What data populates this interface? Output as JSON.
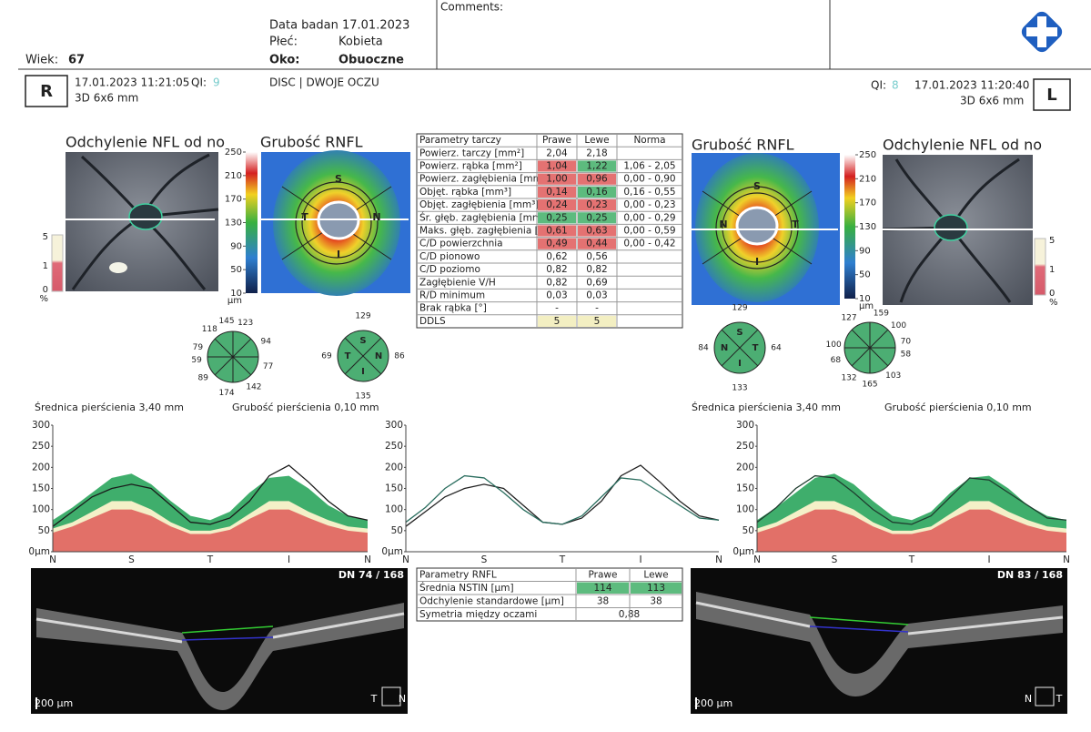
{
  "header": {
    "age_label": "Wiek:",
    "age": 67,
    "exam_date": "Data badan 17.01.2023",
    "sex_label": "Płeć:",
    "sex": "Kobieta",
    "eye_label": "Oko:",
    "eye": "Obuoczne",
    "comments": "Comments:"
  },
  "scan": {
    "mode": "DISC | DWOJE OCZU"
  },
  "right": {
    "badge": "R",
    "datetime": "17.01.2023 11:21:05",
    "qi_label": "QI:",
    "qi": 9,
    "protocol": "3D 6x6 mm",
    "deviation_title": "Odchylenie NFL od no",
    "thickness_title": "Grubość RNFL",
    "clock": [
      145,
      123,
      94,
      77,
      142,
      174,
      89,
      59,
      79,
      118
    ],
    "quadrants": {
      "labels": [
        "S",
        "N",
        "I",
        "T"
      ],
      "values": [
        129,
        86,
        135,
        69
      ]
    },
    "bscan_label": "DN 74 / 168",
    "scale_bar": "200 µm",
    "direction": [
      "T",
      "N"
    ]
  },
  "left": {
    "badge": "L",
    "datetime": "17.01.2023 11:20:40",
    "qi_label": "QI:",
    "qi": 8,
    "protocol": "3D 6x6 mm",
    "deviation_title": "Odchylenie NFL od no",
    "thickness_title": "Grubość RNFL",
    "clock": [
      159,
      100,
      70,
      58,
      103,
      165,
      132,
      68,
      100,
      127
    ],
    "quadrants": {
      "labels": [
        "S",
        "T",
        "I",
        "N"
      ],
      "values": [
        129,
        64,
        133,
        84
      ]
    },
    "bscan_label": "DN 83 / 168",
    "scale_bar": "200 µm",
    "direction": [
      "N",
      "T"
    ]
  },
  "thickness_scale": {
    "ticks": [
      250,
      210,
      170,
      130,
      90,
      50,
      10
    ],
    "unit": "µm"
  },
  "deviation_scale": {
    "ticks": [
      5,
      1,
      0
    ],
    "unit": "%"
  },
  "disc_table": {
    "header": [
      "Parametry tarczy",
      "Prawe",
      "Lewe",
      "Norma"
    ],
    "rows": [
      {
        "label": "Powierz. tarczy [mm²]",
        "prawe": "2,04",
        "lewe": "2,18"
      },
      {
        "label": "Powierz. rąbka [mm²]",
        "prawe": "1,04",
        "lewe": "1,22",
        "norma": "1,06 - 2,05",
        "colors": [
          "#e47272",
          "#5dbb7e"
        ]
      },
      {
        "label": "Powierz. zagłębienia [mm",
        "prawe": "1,00",
        "lewe": "0,96",
        "norma": "0,00 - 0,90",
        "colors": [
          "#e47272",
          "#e47272"
        ]
      },
      {
        "label": "Objęt. rąbka [mm³]",
        "prawe": "0,14",
        "lewe": "0,16",
        "norma": "0,16 - 0,55",
        "colors": [
          "#e47272",
          "#5dbb7e"
        ]
      },
      {
        "label": "Objęt. zagłębienia [mm³]",
        "prawe": "0,24",
        "lewe": "0,23",
        "norma": "0,00 - 0,23",
        "colors": [
          "#e47272",
          "#e47272"
        ]
      },
      {
        "label": "Śr. głęb. zagłębienia [mm",
        "prawe": "0,25",
        "lewe": "0,25",
        "norma": "0,00 - 0,29",
        "colors": [
          "#5dbb7e",
          "#5dbb7e"
        ]
      },
      {
        "label": "Maks. głęb. zagłębienia [r",
        "prawe": "0,61",
        "lewe": "0,63",
        "norma": "0,00 - 0,59",
        "colors": [
          "#e47272",
          "#e47272"
        ]
      },
      {
        "label": "C/D powierzchnia",
        "prawe": "0,49",
        "lewe": "0,44",
        "norma": "0,00 - 0,42",
        "colors": [
          "#e47272",
          "#e47272"
        ]
      },
      {
        "label": "C/D pionowo",
        "prawe": "0,62",
        "lewe": "0,56"
      },
      {
        "label": "C/D poziomo",
        "prawe": "0,82",
        "lewe": "0,82"
      },
      {
        "label": "Zagłębienie V/H",
        "prawe": "0,82",
        "lewe": "0,69"
      },
      {
        "label": "R/D minimum",
        "prawe": "0,03",
        "lewe": "0,03"
      },
      {
        "label": "Brak rąbka [°]",
        "prawe": "-",
        "lewe": "-"
      },
      {
        "label": "DDLS",
        "prawe": "5",
        "lewe": "5",
        "colors": [
          "#f3efc2",
          "#f3efc2"
        ]
      }
    ]
  },
  "rnfl_table": {
    "header": [
      "Parametry RNFL",
      "Prawe",
      "Lewe"
    ],
    "rows": [
      {
        "label": "Średnia NSTIN [µm]",
        "prawe": 114,
        "lewe": 113,
        "colors": [
          "#5dbb7e",
          "#5dbb7e"
        ]
      },
      {
        "label": "Odchylenie standardowe [µm]",
        "prawe": 38,
        "lewe": 38
      },
      {
        "label": "Symetria między oczami",
        "value": "0,88"
      }
    ]
  },
  "chart_data": [
    {
      "type": "line",
      "annotations": [
        "Średnica pierścienia 3,40 mm",
        "Grubość pierścienia 0,10 mm"
      ],
      "categories": [
        "N",
        null,
        null,
        null,
        "S",
        null,
        null,
        null,
        "T",
        null,
        null,
        null,
        "I",
        null,
        null,
        null,
        "N"
      ],
      "ylim": [
        0,
        300
      ],
      "yticks": [
        {
          "value": 0,
          "label": "0µm"
        },
        50,
        100,
        150,
        200,
        250,
        300
      ],
      "bands": [
        {
          "color": "#3fae6c",
          "values": [
            75,
            105,
            140,
            175,
            185,
            160,
            120,
            85,
            75,
            95,
            140,
            175,
            180,
            150,
            110,
            85,
            75
          ]
        },
        {
          "color": "#f4f0c8",
          "values": [
            55,
            70,
            95,
            120,
            120,
            100,
            70,
            50,
            50,
            60,
            90,
            120,
            120,
            95,
            75,
            60,
            55
          ]
        },
        {
          "color": "#e27068",
          "values": [
            45,
            60,
            80,
            100,
            100,
            85,
            60,
            42,
            42,
            52,
            78,
            100,
            100,
            80,
            62,
            50,
            45
          ]
        }
      ],
      "series": [
        {
          "color": "#1a1a1a",
          "values": [
            60,
            95,
            130,
            150,
            160,
            150,
            110,
            70,
            65,
            80,
            120,
            180,
            205,
            165,
            120,
            85,
            75
          ]
        }
      ]
    },
    {
      "type": "line",
      "categories": [
        "N",
        null,
        null,
        null,
        "S",
        null,
        null,
        null,
        "T",
        null,
        null,
        null,
        "I",
        null,
        null,
        null,
        "N"
      ],
      "ylim": [
        0,
        300
      ],
      "yticks": [
        {
          "value": 0,
          "label": "0µm"
        },
        50,
        100,
        150,
        200,
        250,
        300
      ],
      "series": [
        {
          "color": "#222222",
          "values": [
            60,
            95,
            130,
            150,
            160,
            150,
            110,
            70,
            65,
            80,
            120,
            180,
            205,
            165,
            120,
            85,
            75
          ]
        },
        {
          "color": "#2b6e5f",
          "values": [
            70,
            105,
            150,
            180,
            175,
            140,
            100,
            70,
            65,
            85,
            130,
            175,
            170,
            140,
            110,
            80,
            75
          ]
        }
      ]
    },
    {
      "type": "line",
      "annotations": [
        "Średnica pierścienia 3,40 mm",
        "Grubość pierścienia 0,10 mm"
      ],
      "categories": [
        "N",
        null,
        null,
        null,
        "S",
        null,
        null,
        null,
        "T",
        null,
        null,
        null,
        "I",
        null,
        null,
        null,
        "N"
      ],
      "ylim": [
        0,
        300
      ],
      "yticks": [
        {
          "value": 0,
          "label": "0µm"
        },
        50,
        100,
        150,
        200,
        250,
        300
      ],
      "bands": [
        {
          "color": "#3fae6c",
          "values": [
            75,
            105,
            140,
            175,
            185,
            160,
            120,
            85,
            75,
            95,
            140,
            175,
            180,
            150,
            110,
            85,
            75
          ]
        },
        {
          "color": "#f4f0c8",
          "values": [
            55,
            70,
            95,
            120,
            120,
            100,
            70,
            50,
            50,
            60,
            90,
            120,
            120,
            95,
            75,
            60,
            55
          ]
        },
        {
          "color": "#e27068",
          "values": [
            45,
            60,
            80,
            100,
            100,
            85,
            60,
            42,
            42,
            52,
            78,
            100,
            100,
            80,
            62,
            50,
            45
          ]
        }
      ],
      "series": [
        {
          "color": "#1f3d2f",
          "values": [
            70,
            105,
            150,
            180,
            175,
            140,
            100,
            70,
            65,
            85,
            130,
            175,
            170,
            140,
            110,
            80,
            75
          ]
        }
      ]
    }
  ]
}
